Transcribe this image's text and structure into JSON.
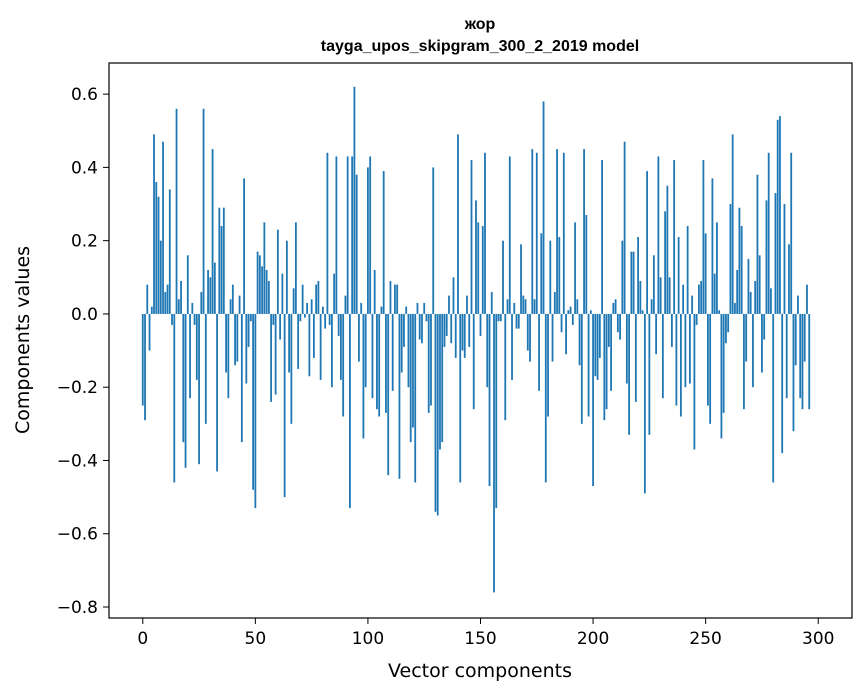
{
  "chart_data": {
    "type": "bar",
    "title": [
      "жор",
      "tayga_upos_skipgram_300_2_2019 model"
    ],
    "xlabel": "Vector components",
    "ylabel": "Components values",
    "xlim": [
      -15,
      315
    ],
    "ylim": [
      -0.83,
      0.685
    ],
    "xticks": [
      0,
      50,
      100,
      150,
      200,
      250,
      300
    ],
    "yticks": [
      -0.8,
      -0.6,
      -0.4,
      -0.2,
      0.0,
      0.2,
      0.4,
      0.6
    ],
    "ytick_labels": [
      "−0.8",
      "−0.6",
      "−0.4",
      "−0.2",
      "0.0",
      "0.2",
      "0.4",
      "0.6"
    ],
    "grid": false,
    "bar_color": "#1f77b4",
    "values": [
      -0.25,
      -0.29,
      0.08,
      -0.1,
      0.02,
      0.49,
      0.36,
      0.32,
      0.2,
      0.47,
      0.06,
      0.08,
      0.34,
      -0.03,
      -0.46,
      0.56,
      0.04,
      0.09,
      -0.35,
      -0.42,
      0.16,
      -0.23,
      0.03,
      -0.03,
      -0.18,
      -0.41,
      0.06,
      0.56,
      -0.3,
      0.12,
      0.1,
      0.45,
      0.14,
      -0.43,
      0.29,
      0.24,
      0.29,
      -0.16,
      -0.23,
      0.04,
      0.08,
      -0.14,
      -0.13,
      0.05,
      -0.35,
      0.37,
      -0.19,
      -0.09,
      -0.02,
      -0.48,
      -0.53,
      0.17,
      0.16,
      0.13,
      0.25,
      0.12,
      0.09,
      -0.24,
      -0.03,
      -0.22,
      0.23,
      -0.07,
      0.11,
      -0.5,
      0.2,
      -0.16,
      -0.3,
      0.07,
      0.25,
      -0.15,
      -0.02,
      0.08,
      -0.01,
      0.03,
      -0.17,
      0.04,
      -0.12,
      0.08,
      0.09,
      -0.18,
      0.02,
      -0.04,
      0.44,
      -0.03,
      -0.2,
      0.11,
      0.43,
      -0.06,
      -0.18,
      -0.28,
      0.05,
      0.43,
      -0.53,
      0.43,
      0.62,
      0.38,
      -0.13,
      0.03,
      -0.34,
      -0.2,
      0.4,
      0.43,
      -0.23,
      0.12,
      -0.26,
      -0.28,
      0.02,
      0.39,
      -0.27,
      -0.44,
      0.09,
      -0.21,
      0.08,
      0.08,
      -0.45,
      -0.16,
      -0.09,
      0.02,
      -0.2,
      -0.35,
      -0.31,
      -0.46,
      0.03,
      -0.07,
      -0.08,
      0.03,
      -0.02,
      -0.27,
      -0.25,
      0.4,
      -0.54,
      -0.55,
      -0.37,
      -0.35,
      -0.09,
      -0.06,
      0.05,
      -0.08,
      0.1,
      -0.12,
      0.49,
      -0.46,
      -0.1,
      -0.12,
      0.05,
      -0.09,
      0.42,
      -0.26,
      0.31,
      0.25,
      -0.06,
      0.24,
      0.44,
      -0.2,
      -0.47,
      0.06,
      -0.76,
      -0.53,
      -0.02,
      -0.02,
      0.2,
      -0.29,
      0.04,
      0.43,
      -0.18,
      0.03,
      -0.04,
      -0.04,
      0.19,
      0.05,
      0.04,
      -0.1,
      -0.13,
      0.45,
      0.04,
      0.44,
      -0.21,
      0.22,
      0.58,
      -0.46,
      -0.28,
      0.2,
      -0.13,
      0.06,
      0.45,
      0.21,
      -0.05,
      0.44,
      -0.11,
      0.01,
      0.02,
      -0.03,
      0.25,
      0.04,
      -0.14,
      -0.3,
      0.45,
      0.27,
      -0.28,
      0.01,
      -0.47,
      -0.17,
      -0.18,
      -0.12,
      0.42,
      -0.29,
      -0.26,
      -0.09,
      -0.21,
      0.03,
      0.04,
      -0.05,
      -0.07,
      0.2,
      0.47,
      -0.19,
      -0.33,
      0.17,
      0.17,
      -0.24,
      0.21,
      0.09,
      0.01,
      -0.49,
      0.39,
      -0.33,
      0.04,
      0.16,
      -0.11,
      0.43,
      0.1,
      -0.23,
      0.28,
      0.35,
      0.1,
      -0.09,
      0.42,
      -0.25,
      0.21,
      -0.28,
      0.08,
      -0.2,
      0.24,
      -0.19,
      0.05,
      -0.37,
      -0.03,
      0.08,
      0.09,
      0.42,
      0.22,
      -0.25,
      -0.3,
      0.37,
      0.11,
      0.25,
      0.01,
      -0.34,
      -0.27,
      -0.08,
      -0.05,
      0.3,
      0.49,
      0.03,
      0.12,
      0.29,
      0.24,
      -0.26,
      -0.13,
      0.15,
      0.06,
      -0.2,
      0.09,
      0.38,
      0.16,
      -0.16,
      -0.07,
      0.31,
      0.44,
      0.07,
      -0.46,
      0.33,
      0.53,
      0.54,
      -0.38,
      0.3,
      -0.23,
      0.19,
      0.44,
      -0.32,
      -0.14,
      0.05,
      -0.23,
      -0.26,
      -0.13,
      0.08,
      -0.26
    ]
  }
}
